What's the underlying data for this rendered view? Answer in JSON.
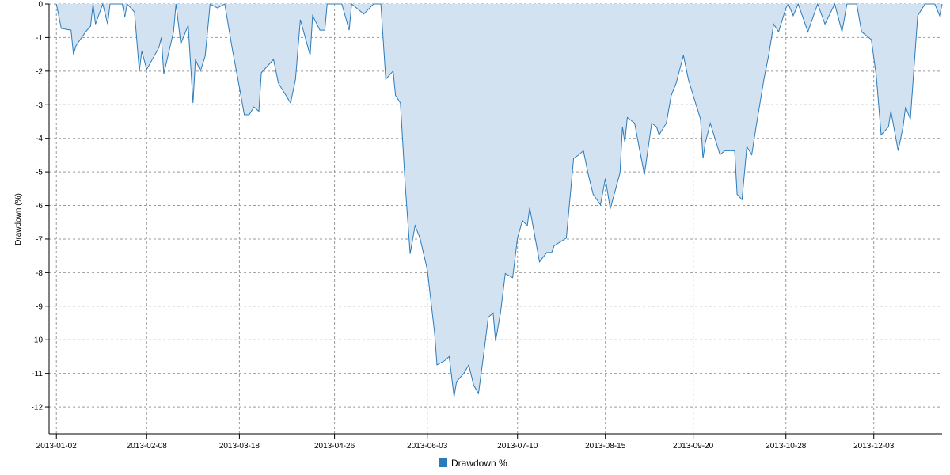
{
  "chart_data": {
    "type": "area",
    "y_label": "Drawdown (%)",
    "color": "#2b7bba",
    "fill": "#d3e2f0",
    "x": [
      "2013-01-02",
      "2013-01-04",
      "2013-01-08",
      "2013-01-09",
      "2013-01-10",
      "2013-01-14",
      "2013-01-16",
      "2013-01-17",
      "2013-01-18",
      "2013-01-21",
      "2013-01-23",
      "2013-01-24",
      "2013-01-29",
      "2013-01-30",
      "2013-01-31",
      "2013-02-03",
      "2013-02-05",
      "2013-02-06",
      "2013-02-08",
      "2013-02-13",
      "2013-02-14",
      "2013-02-15",
      "2013-02-19",
      "2013-02-20",
      "2013-02-22",
      "2013-02-25",
      "2013-02-27",
      "2013-02-28",
      "2013-03-02",
      "2013-03-04",
      "2013-03-06",
      "2013-03-09",
      "2013-03-12",
      "2013-03-15",
      "2013-03-18",
      "2013-03-20",
      "2013-03-22",
      "2013-03-24",
      "2013-03-26",
      "2013-03-27",
      "2013-04-01",
      "2013-04-03",
      "2013-04-08",
      "2013-04-10",
      "2013-04-12",
      "2013-04-16",
      "2013-04-17",
      "2013-04-20",
      "2013-04-22",
      "2013-04-23",
      "2013-04-29",
      "2013-05-02",
      "2013-05-03",
      "2013-05-08",
      "2013-05-12",
      "2013-05-15",
      "2013-05-17",
      "2013-05-20",
      "2013-05-21",
      "2013-05-23",
      "2013-05-25",
      "2013-05-27",
      "2013-05-29",
      "2013-05-31",
      "2013-06-03",
      "2013-06-06",
      "2013-06-07",
      "2013-06-10",
      "2013-06-12",
      "2013-06-14",
      "2013-06-15",
      "2013-06-18",
      "2013-06-20",
      "2013-06-22",
      "2013-06-24",
      "2013-06-26",
      "2013-06-28",
      "2013-06-30",
      "2013-07-01",
      "2013-07-03",
      "2013-07-05",
      "2013-07-08",
      "2013-07-10",
      "2013-07-12",
      "2013-07-14",
      "2013-07-15",
      "2013-07-19",
      "2013-07-22",
      "2013-07-24",
      "2013-07-25",
      "2013-07-30",
      "2013-08-02",
      "2013-08-04",
      "2013-08-06",
      "2013-08-08",
      "2013-08-10",
      "2013-08-13",
      "2013-08-15",
      "2013-08-17",
      "2013-08-21",
      "2013-08-22",
      "2013-08-23",
      "2013-08-24",
      "2013-08-27",
      "2013-08-28",
      "2013-08-31",
      "2013-09-03",
      "2013-09-05",
      "2013-09-06",
      "2013-09-09",
      "2013-09-11",
      "2013-09-13",
      "2013-09-16",
      "2013-09-18",
      "2013-09-20",
      "2013-09-23",
      "2013-09-24",
      "2013-09-25",
      "2013-09-27",
      "2013-10-01",
      "2013-10-03",
      "2013-10-07",
      "2013-10-08",
      "2013-10-10",
      "2013-10-12",
      "2013-10-14",
      "2013-10-16",
      "2013-10-19",
      "2013-10-21",
      "2013-10-23",
      "2013-10-25",
      "2013-10-28",
      "2013-10-29",
      "2013-10-31",
      "2013-11-02",
      "2013-11-06",
      "2013-11-10",
      "2013-11-13",
      "2013-11-17",
      "2013-11-20",
      "2013-11-22",
      "2013-11-26",
      "2013-11-28",
      "2013-12-02",
      "2013-12-04",
      "2013-12-06",
      "2013-12-09",
      "2013-12-10",
      "2013-12-13",
      "2013-12-15",
      "2013-12-16",
      "2013-12-18",
      "2013-12-21",
      "2013-12-24",
      "2013-12-28",
      "2013-12-30",
      "2013-12-31"
    ],
    "series": [
      {
        "name": "Drawdown %",
        "color": "#2b7bba",
        "values": [
          0,
          -0.73,
          -0.78,
          -1.5,
          -1.25,
          -0.83,
          -0.66,
          0,
          -0.6,
          0,
          -0.6,
          0,
          0,
          -0.4,
          0,
          -0.24,
          -2.0,
          -1.4,
          -1.95,
          -1.3,
          -1.0,
          -2.08,
          -0.83,
          0,
          -1.18,
          -0.64,
          -2.95,
          -1.65,
          -2.0,
          -1.55,
          0,
          -0.12,
          0,
          -1.3,
          -2.48,
          -3.3,
          -3.3,
          -3.07,
          -3.2,
          -2.05,
          -1.65,
          -2.36,
          -2.95,
          -2.24,
          -0.47,
          -1.53,
          -0.35,
          -0.78,
          -0.78,
          0,
          0,
          -0.78,
          0,
          -0.3,
          0,
          0,
          -2.24,
          -2.0,
          -2.72,
          -2.95,
          -5.43,
          -7.44,
          -6.6,
          -6.97,
          -7.9,
          -9.8,
          -10.75,
          -10.63,
          -10.5,
          -11.7,
          -11.25,
          -11.0,
          -10.75,
          -11.35,
          -11.6,
          -10.5,
          -9.33,
          -9.2,
          -10.04,
          -9.2,
          -8.03,
          -8.15,
          -6.97,
          -6.45,
          -6.6,
          -6.07,
          -7.68,
          -7.4,
          -7.4,
          -7.2,
          -6.97,
          -4.6,
          -4.5,
          -4.37,
          -5.08,
          -5.67,
          -5.98,
          -5.2,
          -6.1,
          -5.03,
          -3.66,
          -4.13,
          -3.38,
          -3.55,
          -3.95,
          -5.08,
          -3.55,
          -3.66,
          -3.9,
          -3.55,
          -2.72,
          -2.36,
          -1.53,
          -2.24,
          -2.72,
          -3.43,
          -4.6,
          -4.13,
          -3.55,
          -4.49,
          -4.37,
          -4.37,
          -5.67,
          -5.83,
          -4.25,
          -4.49,
          -3.55,
          -2.24,
          -1.5,
          -0.6,
          -0.83,
          -0.12,
          0,
          -0.35,
          0,
          -0.83,
          0,
          -0.6,
          0,
          -0.83,
          0,
          0,
          -0.83,
          -1.06,
          -2.13,
          -3.9,
          -3.66,
          -3.19,
          -4.37,
          -3.66,
          -3.07,
          -3.43,
          -0.35,
          0,
          0,
          -0.35,
          0
        ]
      }
    ],
    "xlim": [
      "2012-12-30",
      "2013-12-31"
    ],
    "xticks": [
      "2013-01-02",
      "2013-02-08",
      "2013-03-18",
      "2013-04-26",
      "2013-06-03",
      "2013-07-10",
      "2013-08-15",
      "2013-09-20",
      "2013-10-28",
      "2013-12-03"
    ],
    "ylim": [
      -12.8,
      0
    ],
    "yticks": [
      0,
      -1,
      -2,
      -3,
      -4,
      -5,
      -6,
      -7,
      -8,
      -9,
      -10,
      -11,
      -12
    ],
    "grid": true,
    "legend": "bottom"
  }
}
